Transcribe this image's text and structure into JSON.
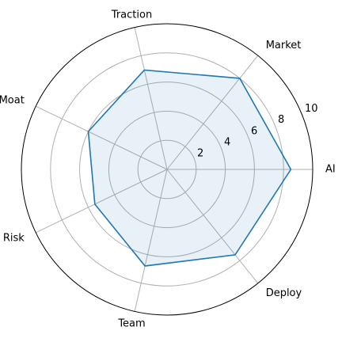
{
  "chart_data": {
    "type": "radar",
    "categories": [
      "AI",
      "Market",
      "Traction",
      "Moat",
      "Risk",
      "Team",
      "Deploy"
    ],
    "series": [
      {
        "values": [
          8.5,
          8.0,
          7.0,
          6.0,
          5.5,
          6.8,
          7.5
        ]
      }
    ],
    "radial_range": [
      0,
      10
    ],
    "radial_ticks": [
      2,
      4,
      6,
      8,
      10
    ],
    "grid": true,
    "colors": {
      "line": "#1f77b4",
      "fill": "#1f77b4",
      "grid": "#b0b0b0",
      "frame": "#000000"
    }
  }
}
